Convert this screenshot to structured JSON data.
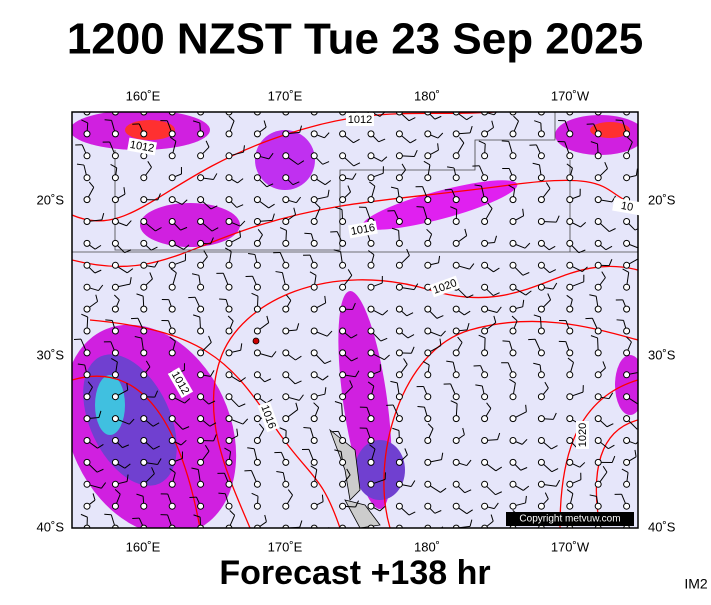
{
  "header": {
    "title": "1200 NZST Tue 23 Sep 2025"
  },
  "map": {
    "top_labels": [
      "160˚E",
      "170˚E",
      "180˚",
      "170˚W"
    ],
    "bottom_labels": [
      "160˚E",
      "170˚E",
      "180˚",
      "170˚W"
    ],
    "left_labels": [
      "20˚S",
      "30˚S",
      "40˚S"
    ],
    "right_labels": [
      "20˚S",
      "30˚S",
      "40˚S"
    ],
    "isobar_labels": [
      "1012",
      "1012",
      "1016",
      "1020",
      "1012",
      "1016",
      "1020",
      "10"
    ],
    "copyright": "Copyright metvuw.com"
  },
  "footer": {
    "forecast": "Forecast +138 hr",
    "image_id": "IM2"
  }
}
